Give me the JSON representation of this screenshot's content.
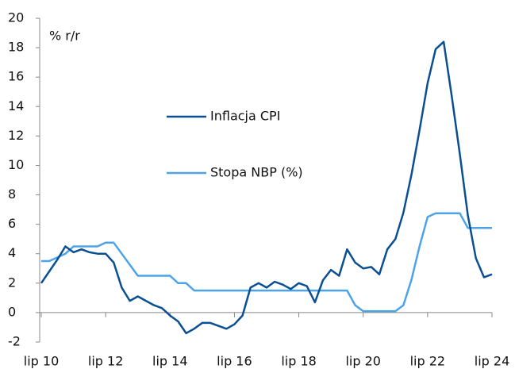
{
  "chart_data": {
    "type": "line",
    "y_label": "% r/r",
    "categories": [
      "lip 10",
      null,
      null,
      null,
      null,
      null,
      null,
      null,
      "lip 12",
      null,
      null,
      null,
      null,
      null,
      null,
      null,
      "lip 14",
      null,
      null,
      null,
      null,
      null,
      null,
      null,
      "lip 16",
      null,
      null,
      null,
      null,
      null,
      null,
      null,
      "lip 18",
      null,
      null,
      null,
      null,
      null,
      null,
      null,
      "lip 20",
      null,
      null,
      null,
      null,
      null,
      null,
      null,
      "lip 22",
      null,
      null,
      null,
      null,
      null,
      null,
      null,
      "lip 24"
    ],
    "series": [
      {
        "name": "Inflacja CPI",
        "color": "#0b4f93",
        "values": [
          2.0,
          2.8,
          3.6,
          4.5,
          4.1,
          4.3,
          4.1,
          4.0,
          4.0,
          3.4,
          1.7,
          0.8,
          1.1,
          0.8,
          0.5,
          0.3,
          -0.2,
          -0.6,
          -1.4,
          -1.1,
          -0.7,
          -0.7,
          -0.9,
          -1.1,
          -0.8,
          -0.2,
          1.7,
          2.0,
          1.7,
          2.1,
          1.9,
          1.6,
          2.0,
          1.8,
          0.7,
          2.2,
          2.9,
          2.5,
          4.3,
          3.4,
          3.0,
          3.1,
          2.6,
          4.3,
          5.0,
          6.8,
          9.4,
          12.4,
          15.6,
          17.9,
          18.4,
          14.7,
          10.8,
          6.6,
          3.7,
          2.4,
          2.6
        ]
      },
      {
        "name": "Stopa NBP (%)",
        "color": "#4da3e8",
        "values": [
          3.5,
          3.5,
          3.75,
          4.0,
          4.5,
          4.5,
          4.5,
          4.5,
          4.75,
          4.75,
          4.0,
          3.25,
          2.5,
          2.5,
          2.5,
          2.5,
          2.5,
          2.0,
          2.0,
          1.5,
          1.5,
          1.5,
          1.5,
          1.5,
          1.5,
          1.5,
          1.5,
          1.5,
          1.5,
          1.5,
          1.5,
          1.5,
          1.5,
          1.5,
          1.5,
          1.5,
          1.5,
          1.5,
          1.5,
          0.5,
          0.1,
          0.1,
          0.1,
          0.1,
          0.1,
          0.5,
          2.25,
          4.5,
          6.5,
          6.75,
          6.75,
          6.75,
          6.75,
          5.75,
          5.75,
          5.75,
          5.75
        ]
      }
    ],
    "ylim": [
      -2,
      20
    ],
    "yticks": [
      -2,
      0,
      2,
      4,
      6,
      8,
      10,
      12,
      14,
      16,
      18,
      20
    ]
  }
}
